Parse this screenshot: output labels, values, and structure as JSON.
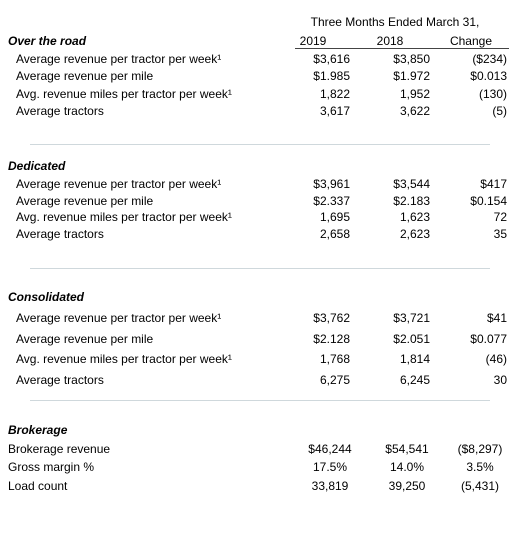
{
  "header": {
    "period": "Three Months Ended March 31,",
    "columns": [
      "2019",
      "2018",
      "Change"
    ]
  },
  "sections": [
    {
      "title": "Over the road",
      "rows": [
        [
          "Average revenue per tractor per week¹",
          "$3,616",
          "$3,850",
          "($234)"
        ],
        [
          "Average revenue per mile",
          "$1.985",
          "$1.972",
          "$0.013"
        ],
        [
          "Avg. revenue miles per tractor per week¹",
          "1,822",
          "1,952",
          "(130)"
        ],
        [
          "Average tractors",
          "3,617",
          "3,622",
          "(5)"
        ]
      ]
    },
    {
      "title": "Dedicated",
      "rows": [
        [
          "Average revenue per tractor per week¹",
          "$3,961",
          "$3,544",
          "$417"
        ],
        [
          "Average revenue per mile",
          "$2.337",
          "$2.183",
          "$0.154"
        ],
        [
          "Avg. revenue miles per tractor per week¹",
          "1,695",
          "1,623",
          "72"
        ],
        [
          "Average tractors",
          "2,658",
          "2,623",
          "35"
        ]
      ]
    },
    {
      "title": "Consolidated",
      "rows": [
        [
          "Average revenue per tractor per week¹",
          "$3,762",
          "$3,721",
          "$41"
        ],
        [
          "Average revenue per mile",
          "$2.128",
          "$2.051",
          "$0.077"
        ],
        [
          "Avg. revenue miles per tractor per week¹",
          "1,768",
          "1,814",
          "(46)"
        ],
        [
          "Average tractors",
          "6,275",
          "6,245",
          "30"
        ]
      ]
    },
    {
      "title": "Brokerage",
      "rows": [
        [
          "Brokerage revenue",
          "$46,244",
          "$54,541",
          "($8,297)"
        ],
        [
          "Gross margin %",
          "17.5%",
          "14.0%",
          "3.5%"
        ],
        [
          "Load count",
          "33,819",
          "39,250",
          "(5,431)"
        ]
      ]
    }
  ]
}
